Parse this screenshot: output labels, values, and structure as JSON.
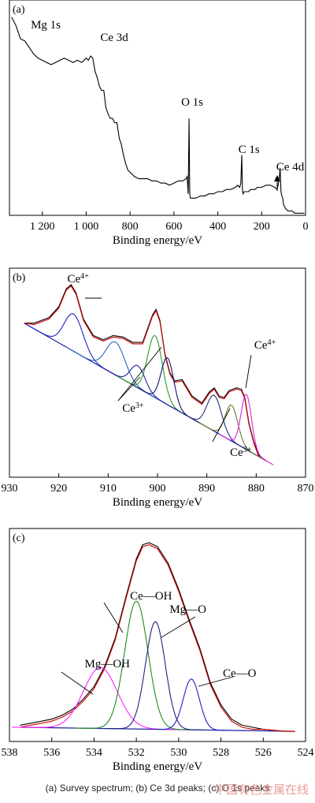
{
  "caption": "(a) Survey spectrum; (b) Ce 3d peaks; (c) O 1s peaks",
  "watermark": "中国有色金属在线",
  "chart_data": [
    {
      "panel": "(a)",
      "type": "line",
      "xlabel": "Binding energy/eV",
      "ylabel": "",
      "xlim": [
        1350,
        0
      ],
      "xticks": [
        1200,
        1000,
        800,
        600,
        400,
        200,
        0
      ],
      "xtick_labels": [
        "1 200",
        "1 000",
        "800",
        "600",
        "400",
        "200",
        "0"
      ],
      "grid": false,
      "series": [
        {
          "color": "#000000",
          "x": [
            1340,
            1320,
            1300,
            1280,
            1260,
            1240,
            1220,
            1200,
            1180,
            1160,
            1140,
            1120,
            1100,
            1080,
            1060,
            1040,
            1020,
            1000,
            990,
            980,
            970,
            960,
            950,
            940,
            930,
            920,
            910,
            900,
            890,
            880,
            870,
            860,
            850,
            840,
            830,
            820,
            810,
            800,
            780,
            760,
            740,
            720,
            700,
            680,
            660,
            640,
            620,
            600,
            580,
            560,
            545,
            540,
            535,
            531,
            528,
            525,
            520,
            500,
            480,
            460,
            440,
            420,
            400,
            380,
            360,
            340,
            320,
            310,
            300,
            295,
            291,
            288,
            285,
            280,
            270,
            260,
            250,
            240,
            230,
            220,
            200,
            180,
            160,
            140,
            130,
            125,
            120,
            116,
            112,
            108,
            104,
            100,
            95,
            90,
            80,
            70,
            60,
            50,
            40,
            30,
            20,
            10,
            5
          ],
          "y": [
            92,
            88,
            82,
            81,
            78,
            75,
            73,
            72,
            71,
            70,
            71,
            72,
            73,
            72,
            71,
            72,
            71,
            73,
            72,
            74,
            73,
            67,
            64,
            60,
            58,
            58,
            50,
            47,
            45,
            45,
            43,
            43,
            36,
            33,
            28,
            24,
            21,
            20,
            18,
            17,
            17,
            17,
            16,
            16,
            15,
            15,
            14,
            15,
            16,
            16,
            17,
            18,
            10,
            45,
            10,
            8,
            8,
            8,
            9,
            9,
            10,
            10,
            11,
            11,
            12,
            12,
            13,
            14,
            13,
            15,
            28,
            12,
            10,
            11,
            11,
            11,
            12,
            12,
            12,
            13,
            13,
            14,
            14,
            13,
            12,
            14,
            17,
            22,
            11,
            9,
            8,
            5,
            4,
            3,
            2,
            2,
            2,
            1,
            1,
            1,
            1,
            1,
            1
          ]
        }
      ],
      "annotations": [
        {
          "text": "Mg 1s",
          "x": 1303
        },
        {
          "text": "Ce 3d",
          "x": 900
        },
        {
          "text": "O 1s",
          "x": 531
        },
        {
          "text": "C 1s",
          "x": 285
        },
        {
          "text": "Ce 4d",
          "x": 112
        }
      ]
    },
    {
      "panel": "(b)",
      "type": "line",
      "xlabel": "Binding energy/eV",
      "ylabel": "",
      "xlim": [
        930,
        870
      ],
      "xticks": [
        930,
        920,
        910,
        900,
        890,
        880,
        870
      ],
      "xtick_labels": [
        "930",
        "920",
        "910",
        "900",
        "890",
        "880",
        "870"
      ],
      "grid": false,
      "baseline": {
        "x": [
          927,
          878
        ],
        "y": [
          100,
          0
        ]
      },
      "series": [
        {
          "color": "#000000",
          "x": [
            927,
            925,
            922,
            920,
            918.5,
            917.5,
            916.5,
            915,
            913,
            911,
            909,
            907,
            905,
            903,
            901,
            900.3,
            899.5,
            898.5,
            897.5,
            896.5,
            895,
            893,
            891,
            889.5,
            888.5,
            887.5,
            886.5,
            885.5,
            884,
            883,
            882.3,
            881.5,
            880.5,
            879.5,
            878
          ],
          "y": [
            100,
            100,
            104,
            112,
            125,
            128,
            122,
            103,
            91,
            88,
            91,
            90,
            86,
            86,
            106,
            110,
            102,
            78,
            64,
            58,
            59,
            47,
            42,
            50,
            53,
            47,
            46,
            51,
            53,
            52,
            46,
            28,
            14,
            4,
            0
          ]
        },
        {
          "color": "#d00000",
          "x": [
            927,
            925,
            922,
            920,
            918.5,
            917.5,
            916.5,
            915,
            913,
            911,
            909,
            907,
            905,
            903,
            901,
            900.3,
            899.5,
            898.5,
            897.5,
            896.5,
            895,
            893,
            891,
            889.5,
            888.5,
            887.5,
            886.5,
            885.5,
            884,
            883,
            882.3,
            881.5,
            880.5,
            879.5,
            878
          ],
          "y": [
            100,
            99,
            103,
            111,
            124,
            127,
            121,
            102,
            90,
            87,
            90,
            89,
            85,
            85,
            105,
            109,
            101,
            77,
            63,
            57,
            58,
            46,
            41,
            49,
            52,
            46,
            45,
            50,
            52,
            51,
            45,
            27,
            13,
            3,
            0
          ]
        },
        {
          "color": "#2020c0",
          "center": 917,
          "height": 27,
          "width": 4.5
        },
        {
          "color": "#3060c0",
          "center": 908.5,
          "height": 24,
          "width": 4.5
        },
        {
          "color": "#2020a0",
          "center": 904,
          "height": 16,
          "width": 3.5
        },
        {
          "color": "#2a9a2a",
          "center": 900.5,
          "height": 45,
          "width": 3.5
        },
        {
          "color": "#101070",
          "center": 898,
          "height": 34,
          "width": 3.0
        },
        {
          "color": "#203080",
          "center": 888.5,
          "height": 26,
          "width": 3.5
        },
        {
          "color": "#6a7a20",
          "center": 885,
          "height": 26,
          "width": 3.0
        },
        {
          "color": "#e020e0",
          "center": 882,
          "height": 40,
          "width": 2.5
        }
      ],
      "annotations": [
        {
          "text": "Ce",
          "sup": "4+",
          "x": 917
        },
        {
          "text": "Ce",
          "sup": "3+",
          "x": 903
        },
        {
          "text": "Ce",
          "sup": "3+",
          "x": 885
        },
        {
          "text": "Ce",
          "sup": "4+",
          "x": 882
        }
      ]
    },
    {
      "panel": "(c)",
      "type": "line",
      "xlabel": "Binding energy/eV",
      "ylabel": "",
      "xlim": [
        538,
        524
      ],
      "xticks": [
        538,
        536,
        534,
        532,
        530,
        528,
        526,
        524
      ],
      "xtick_labels": [
        "538",
        "536",
        "534",
        "532",
        "530",
        "528",
        "526",
        "524"
      ],
      "grid": false,
      "baseline": {
        "x": [
          537.5,
          524.5
        ],
        "y": [
          2,
          0
        ]
      },
      "series": [
        {
          "color": "#000000",
          "x": [
            537.5,
            537,
            536.5,
            536,
            535.5,
            535,
            534.5,
            534,
            533.5,
            533,
            532.5,
            532,
            531.7,
            531.4,
            531,
            530.5,
            530,
            529.5,
            529,
            528.5,
            528,
            527.5,
            527,
            526.5,
            526,
            525,
            524.5
          ],
          "y": [
            3,
            4,
            5,
            6,
            8,
            11,
            16,
            22,
            32,
            46,
            66,
            85,
            92,
            93,
            91,
            83,
            70,
            55,
            41,
            24,
            13,
            6,
            3,
            2,
            1,
            0,
            0
          ]
        },
        {
          "color": "#d00000",
          "x": [
            537.5,
            537,
            536.5,
            536,
            535.5,
            535,
            534.5,
            534,
            533.5,
            533,
            532.5,
            532,
            531.7,
            531.4,
            531,
            530.5,
            530,
            529.5,
            529,
            528.5,
            528,
            527.5,
            527,
            526.5,
            526,
            525,
            524.5
          ],
          "y": [
            2,
            3,
            4,
            5,
            7,
            10,
            15,
            21,
            31,
            45,
            65,
            84,
            91,
            92,
            90,
            82,
            69,
            54,
            40,
            23,
            12,
            5,
            2,
            1,
            1,
            0,
            0
          ]
        },
        {
          "color": "#ff20ff",
          "center": 533.7,
          "height": 30,
          "width": 1.9,
          "label": "Mg—OH"
        },
        {
          "color": "#208a20",
          "center": 532.0,
          "height": 63,
          "width": 1.3,
          "label": "Ce—OH"
        },
        {
          "color": "#202080",
          "center": 531.1,
          "height": 53,
          "width": 1.1,
          "label": "Mg—O"
        },
        {
          "color": "#2020c0",
          "center": 529.4,
          "height": 25,
          "width": 0.9,
          "label": "Ce—O"
        }
      ],
      "annotations": [
        {
          "text": "Mg—OH",
          "x": 533.7
        },
        {
          "text": "Ce—OH",
          "x": 532.0
        },
        {
          "text": "Mg—O",
          "x": 531.1
        },
        {
          "text": "Ce—O",
          "x": 529.4
        }
      ]
    }
  ]
}
